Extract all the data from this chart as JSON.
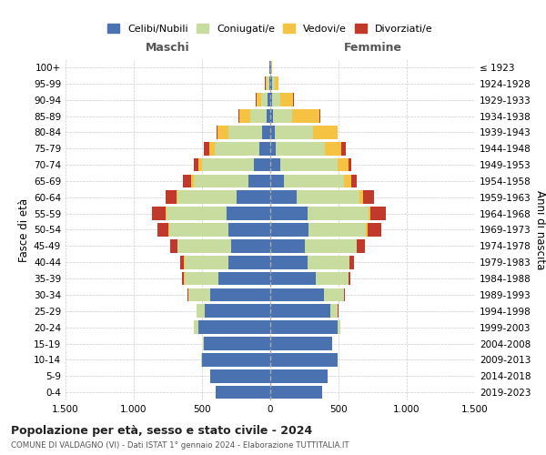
{
  "age_groups": [
    "0-4",
    "5-9",
    "10-14",
    "15-19",
    "20-24",
    "25-29",
    "30-34",
    "35-39",
    "40-44",
    "45-49",
    "50-54",
    "55-59",
    "60-64",
    "65-69",
    "70-74",
    "75-79",
    "80-84",
    "85-89",
    "90-94",
    "95-99",
    "100+"
  ],
  "birth_years": [
    "2019-2023",
    "2014-2018",
    "2009-2013",
    "2004-2008",
    "1999-2003",
    "1994-1998",
    "1989-1993",
    "1984-1988",
    "1979-1983",
    "1974-1978",
    "1969-1973",
    "1964-1968",
    "1959-1963",
    "1954-1958",
    "1949-1953",
    "1944-1948",
    "1939-1943",
    "1934-1938",
    "1929-1933",
    "1924-1928",
    "≤ 1923"
  ],
  "colors": {
    "celibe": "#4a72b0",
    "coniugato": "#c8dca0",
    "vedovo": "#f5c242",
    "divorziato": "#c0392b"
  },
  "males": {
    "celibe": [
      400,
      440,
      500,
      490,
      530,
      480,
      440,
      380,
      310,
      290,
      310,
      320,
      250,
      160,
      120,
      80,
      60,
      30,
      20,
      10,
      5
    ],
    "coniugato": [
      0,
      0,
      5,
      5,
      30,
      60,
      160,
      250,
      320,
      390,
      430,
      440,
      430,
      400,
      380,
      330,
      250,
      120,
      50,
      15,
      2
    ],
    "vedovo": [
      0,
      0,
      0,
      0,
      0,
      0,
      0,
      1,
      1,
      2,
      5,
      5,
      10,
      20,
      30,
      40,
      80,
      80,
      30,
      10,
      1
    ],
    "divorziato": [
      0,
      0,
      0,
      0,
      1,
      2,
      5,
      15,
      30,
      50,
      80,
      100,
      80,
      60,
      30,
      40,
      5,
      5,
      5,
      2,
      0
    ]
  },
  "females": {
    "nubile": [
      380,
      420,
      490,
      450,
      490,
      440,
      390,
      330,
      270,
      250,
      280,
      270,
      190,
      100,
      70,
      40,
      30,
      20,
      15,
      10,
      5
    ],
    "coniugata": [
      0,
      0,
      3,
      5,
      25,
      55,
      150,
      240,
      310,
      380,
      420,
      450,
      460,
      440,
      420,
      360,
      280,
      140,
      60,
      20,
      2
    ],
    "vedova": [
      0,
      0,
      0,
      0,
      0,
      0,
      0,
      1,
      2,
      5,
      10,
      15,
      30,
      50,
      80,
      120,
      180,
      200,
      90,
      30,
      3
    ],
    "divorziata": [
      0,
      0,
      0,
      0,
      1,
      2,
      5,
      15,
      30,
      60,
      100,
      110,
      80,
      40,
      20,
      30,
      5,
      5,
      5,
      2,
      0
    ]
  },
  "xlim": 1500,
  "xticks": [
    -1500,
    -1000,
    -500,
    0,
    500,
    1000,
    1500
  ],
  "xticklabels": [
    "1.500",
    "1.000",
    "500",
    "0",
    "500",
    "1.000",
    "1.500"
  ],
  "title": "Popolazione per età, sesso e stato civile - 2024",
  "subtitle": "COMUNE DI VALDAGNO (VI) - Dati ISTAT 1° gennaio 2024 - Elaborazione TUTTITALIA.IT",
  "ylabel_left": "Fasce di età",
  "ylabel_right": "Anni di nascita",
  "label_maschi": "Maschi",
  "label_femmine": "Femmine",
  "legend_labels": [
    "Celibi/Nubili",
    "Coniugati/e",
    "Vedovi/e",
    "Divorziati/e"
  ]
}
